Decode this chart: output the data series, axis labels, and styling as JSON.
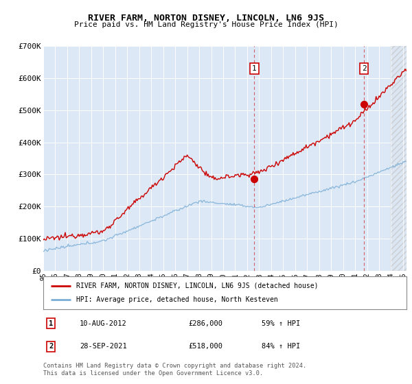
{
  "title": "RIVER FARM, NORTON DISNEY, LINCOLN, LN6 9JS",
  "subtitle": "Price paid vs. HM Land Registry's House Price Index (HPI)",
  "ylim": [
    0,
    700000
  ],
  "yticks": [
    0,
    100000,
    200000,
    300000,
    400000,
    500000,
    600000,
    700000
  ],
  "ytick_labels": [
    "£0",
    "£100K",
    "£200K",
    "£300K",
    "£400K",
    "£500K",
    "£600K",
    "£700K"
  ],
  "bg_color": "#dce8f5",
  "grid_color": "#ffffff",
  "red_line_color": "#cc0000",
  "blue_line_color": "#7aadd6",
  "marker1_date_x": 2012.6,
  "marker1_price": 286000,
  "marker2_date_x": 2021.75,
  "marker2_price": 518000,
  "annotation1_label": "1",
  "annotation2_label": "2",
  "hatch_start": 2024.0,
  "xmin": 1995.0,
  "xmax": 2025.3,
  "legend_line1": "RIVER FARM, NORTON DISNEY, LINCOLN, LN6 9JS (detached house)",
  "legend_line2": "HPI: Average price, detached house, North Kesteven",
  "note1_label": "1",
  "note1_date": "10-AUG-2012",
  "note1_price": "£286,000",
  "note1_hpi": "59% ↑ HPI",
  "note2_label": "2",
  "note2_date": "28-SEP-2021",
  "note2_price": "£518,000",
  "note2_hpi": "84% ↑ HPI",
  "footer": "Contains HM Land Registry data © Crown copyright and database right 2024.\nThis data is licensed under the Open Government Licence v3.0."
}
